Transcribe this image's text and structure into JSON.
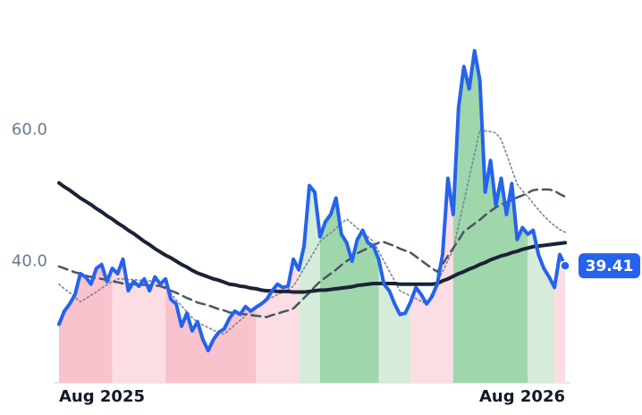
{
  "chart_data": {
    "type": "line",
    "categories": [
      "Aug 2025",
      null,
      null,
      null,
      null,
      null,
      null,
      null,
      null,
      null,
      null,
      null,
      null,
      null,
      null,
      null,
      null,
      null,
      null,
      null,
      null,
      null,
      null,
      null,
      null,
      null,
      null,
      null,
      null,
      null,
      null,
      null,
      null,
      null,
      null,
      null,
      null,
      null,
      null,
      null,
      null,
      null,
      null,
      null,
      null,
      null,
      null,
      null,
      null,
      null,
      null,
      null,
      null,
      null,
      null,
      null,
      null,
      null,
      null,
      null,
      null,
      null,
      null,
      null,
      null,
      null,
      null,
      null,
      null,
      null,
      null,
      null,
      null,
      null,
      null,
      null,
      null,
      null,
      null,
      null,
      null,
      null,
      null,
      null,
      null,
      null,
      null,
      null,
      null,
      null,
      null,
      null,
      null,
      null,
      null,
      "Aug 2026"
    ],
    "series": [
      {
        "color": "#2563eb",
        "width": 4,
        "dash": null,
        "values": [
          30.5,
          32.5,
          33.6,
          35.0,
          38.2,
          37.7,
          36.6,
          39.0,
          39.6,
          37.0,
          39.0,
          38.2,
          40.4,
          35.6,
          37.0,
          36.3,
          37.4,
          35.6,
          37.7,
          36.6,
          37.4,
          34.3,
          33.6,
          30.2,
          32.2,
          29.5,
          30.9,
          28.2,
          26.5,
          28.2,
          29.3,
          29.8,
          31.4,
          32.5,
          32.0,
          33.2,
          32.5,
          33.1,
          33.6,
          34.3,
          35.6,
          36.6,
          36.1,
          36.3,
          40.4,
          38.8,
          42.4,
          51.6,
          50.6,
          43.8,
          46.1,
          47.2,
          49.7,
          44.2,
          42.9,
          40.1,
          43.4,
          44.8,
          42.9,
          42.4,
          40.4,
          36.6,
          35.6,
          33.6,
          32.0,
          32.2,
          33.9,
          36.1,
          35.0,
          33.6,
          34.7,
          36.6,
          41.1,
          52.7,
          47.2,
          63.5,
          69.7,
          66.3,
          72.1,
          67.6,
          50.6,
          55.4,
          48.6,
          52.7,
          47.2,
          51.9,
          43.4,
          45.2,
          44.2,
          44.8,
          41.1,
          39.0,
          37.7,
          36.1,
          41.1,
          39.41
        ]
      },
      {
        "color": "#1b2236",
        "width": 4,
        "dash": null,
        "values": [
          52.0,
          51.4,
          50.9,
          50.3,
          49.7,
          49.2,
          48.7,
          48.1,
          47.6,
          47.0,
          46.5,
          45.9,
          45.4,
          44.8,
          44.3,
          43.7,
          43.1,
          42.6,
          42.0,
          41.5,
          41.0,
          40.6,
          40.1,
          39.6,
          39.2,
          38.7,
          38.3,
          38.0,
          37.7,
          37.4,
          37.2,
          36.9,
          36.6,
          36.5,
          36.3,
          36.2,
          36.0,
          35.9,
          35.7,
          35.6,
          35.6,
          35.5,
          35.5,
          35.5,
          35.4,
          35.4,
          35.4,
          35.5,
          35.6,
          35.7,
          35.7,
          35.8,
          35.9,
          36.0,
          36.1,
          36.2,
          36.4,
          36.5,
          36.6,
          36.7,
          36.7,
          36.7,
          36.7,
          36.7,
          36.6,
          36.6,
          36.6,
          36.6,
          36.6,
          36.6,
          36.6,
          36.7,
          37.1,
          37.4,
          37.8,
          38.2,
          38.5,
          38.9,
          39.2,
          39.6,
          39.9,
          40.3,
          40.6,
          40.9,
          41.1,
          41.4,
          41.6,
          41.9,
          42.1,
          42.3,
          42.4,
          42.5,
          42.6,
          42.7,
          42.8,
          42.9
        ]
      },
      {
        "color": "#4b5563",
        "width": 2.5,
        "dash": "10 6",
        "values": [
          39.3,
          39.0,
          38.7,
          38.4,
          38.2,
          37.9,
          37.7,
          37.5,
          37.4,
          37.2,
          37.0,
          36.9,
          36.7,
          36.6,
          36.6,
          36.5,
          36.5,
          36.4,
          36.4,
          36.3,
          36.0,
          35.6,
          35.3,
          34.9,
          34.5,
          34.2,
          33.8,
          33.6,
          33.4,
          33.1,
          32.8,
          32.6,
          32.3,
          32.2,
          32.1,
          32.0,
          31.9,
          31.8,
          31.7,
          31.6,
          31.9,
          32.1,
          32.4,
          32.6,
          32.9,
          33.7,
          34.5,
          35.3,
          36.2,
          37.0,
          37.6,
          38.2,
          38.8,
          39.5,
          40.1,
          40.7,
          41.3,
          41.7,
          42.1,
          42.5,
          42.9,
          43.0,
          42.7,
          42.4,
          42.0,
          41.7,
          41.4,
          40.8,
          40.2,
          39.6,
          39.0,
          38.5,
          39.6,
          40.9,
          42.1,
          43.3,
          44.6,
          45.2,
          45.8,
          46.4,
          47.1,
          47.7,
          48.3,
          48.7,
          49.0,
          49.4,
          49.8,
          50.1,
          50.5,
          50.9,
          51.0,
          51.0,
          51.0,
          50.8,
          50.3,
          49.9
        ]
      },
      {
        "color": "#7b8494",
        "width": 1.6,
        "dash": "2 3",
        "values": [
          36.6,
          35.9,
          35.3,
          34.6,
          33.9,
          34.4,
          34.9,
          35.4,
          36.0,
          36.5,
          37.0,
          37.4,
          37.4,
          37.3,
          37.3,
          37.2,
          37.2,
          37.1,
          37.1,
          37.0,
          36.1,
          35.2,
          34.2,
          33.3,
          32.4,
          31.5,
          30.8,
          30.4,
          30.0,
          29.6,
          29.2,
          29.0,
          29.7,
          30.4,
          31.1,
          31.8,
          32.6,
          33.3,
          33.8,
          34.2,
          34.6,
          35.0,
          35.4,
          35.8,
          36.3,
          37.6,
          39.0,
          40.3,
          41.7,
          43.1,
          43.8,
          44.4,
          45.1,
          45.8,
          46.5,
          45.8,
          45.1,
          44.5,
          43.8,
          43.1,
          41.6,
          40.1,
          38.6,
          37.1,
          35.6,
          35.2,
          34.8,
          34.4,
          34.0,
          33.6,
          35.2,
          36.9,
          38.5,
          40.2,
          41.8,
          45.5,
          49.1,
          52.8,
          56.4,
          60.1,
          59.9,
          59.8,
          59.6,
          58.6,
          56.4,
          54.1,
          51.8,
          50.8,
          49.9,
          48.9,
          47.9,
          47.0,
          46.2,
          45.5,
          44.9,
          44.5
        ]
      }
    ],
    "regions": [
      {
        "from": 0,
        "to": 10,
        "color": "#f8c3cd"
      },
      {
        "from": 10,
        "to": 20,
        "color": "#fcdde3"
      },
      {
        "from": 20,
        "to": 37,
        "color": "#f8c3cd"
      },
      {
        "from": 37,
        "to": 45,
        "color": "#fcdde3"
      },
      {
        "from": 45,
        "to": 49,
        "color": "#d6ecdb"
      },
      {
        "from": 49,
        "to": 60,
        "color": "#9fd6ac"
      },
      {
        "from": 60,
        "to": 66,
        "color": "#d6ecdb"
      },
      {
        "from": 66,
        "to": 74,
        "color": "#fcdde3"
      },
      {
        "from": 74,
        "to": 88,
        "color": "#9fd6ac"
      },
      {
        "from": 88,
        "to": 93,
        "color": "#d6ecdb"
      },
      {
        "from": 93,
        "to": 95,
        "color": "#fcdde3"
      }
    ],
    "ylim": [
      21.6,
      77.1
    ],
    "yticks": [
      {
        "value": 40,
        "label": "40.0"
      },
      {
        "value": 60,
        "label": "60.0"
      }
    ],
    "last_value_label": true
  }
}
